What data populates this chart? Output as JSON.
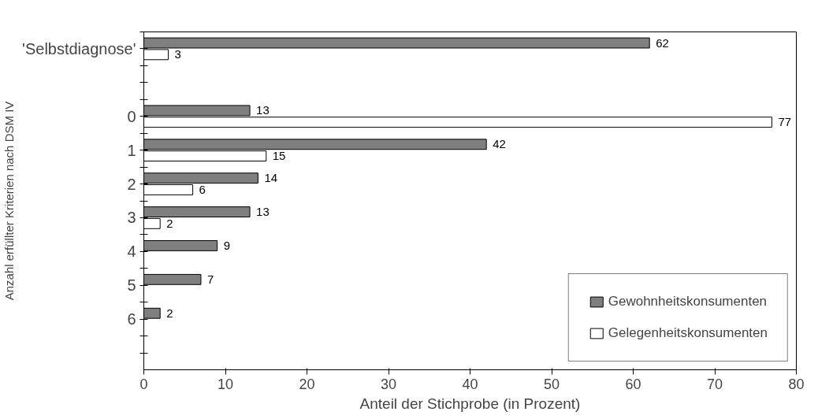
{
  "chart_data": {
    "type": "bar",
    "orientation": "horizontal",
    "categories": [
      "'Selbstdiagnose'",
      null,
      "0",
      "1",
      "2",
      "3",
      "4",
      "5",
      "6",
      null
    ],
    "series": [
      {
        "name": "Gewohnheitskonsumenten",
        "color": "#7f7f7f",
        "values": [
          62,
          null,
          13,
          42,
          14,
          13,
          9,
          7,
          2,
          null
        ]
      },
      {
        "name": "Gelegenheitskonsumenten",
        "color": "#ffffff",
        "values": [
          3,
          null,
          77,
          15,
          6,
          2,
          null,
          null,
          null,
          null
        ]
      }
    ],
    "xlabel": "Anteil der Stichprobe (in Prozent)",
    "ylabel": "Anzahl erfüllter Kriterien nach DSM IV",
    "xlim": [
      0,
      80
    ],
    "xticks": [
      0,
      10,
      20,
      30,
      40,
      50,
      60,
      70,
      80
    ],
    "data_labels": true,
    "legend": "bottom right",
    "grid": false
  }
}
